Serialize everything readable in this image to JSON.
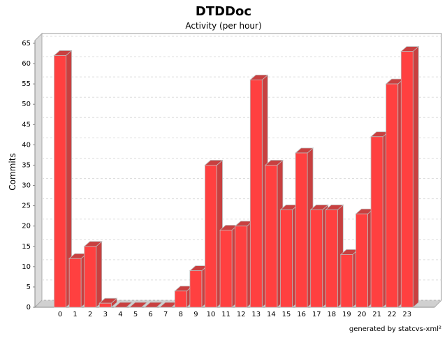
{
  "chart_data": {
    "type": "bar",
    "title": "DTDDoc",
    "subtitle": "Activity (per hour)",
    "xlabel": "",
    "ylabel": "Commits",
    "categories": [
      "0",
      "1",
      "2",
      "3",
      "4",
      "5",
      "6",
      "7",
      "8",
      "9",
      "10",
      "11",
      "12",
      "13",
      "14",
      "15",
      "16",
      "17",
      "18",
      "19",
      "20",
      "21",
      "22",
      "23"
    ],
    "values": [
      62,
      12,
      15,
      1,
      0,
      0,
      0,
      0,
      4,
      9,
      35,
      19,
      20,
      56,
      35,
      24,
      38,
      24,
      24,
      13,
      23,
      42,
      55,
      63
    ],
    "ylim": [
      0,
      65
    ],
    "yticks": [
      0,
      5,
      10,
      15,
      20,
      25,
      30,
      35,
      40,
      45,
      50,
      55,
      60,
      65
    ],
    "grid": true,
    "bar_color": "#ff4040",
    "footer": "generated by statcvs-xml²"
  }
}
